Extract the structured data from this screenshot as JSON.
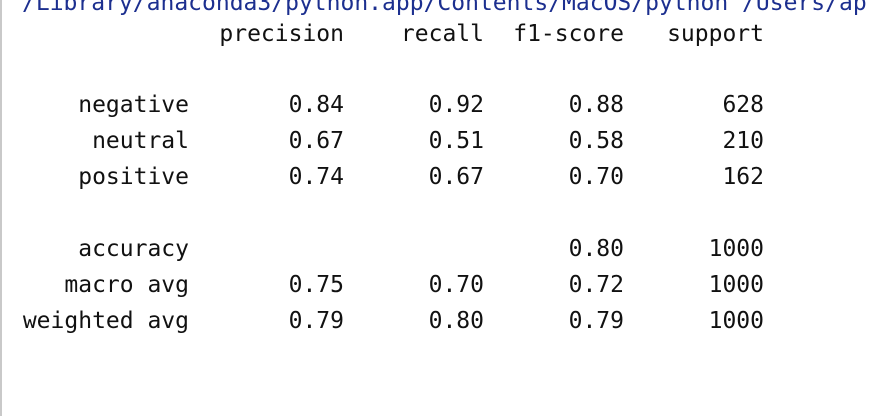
{
  "output": {
    "path_text": "/Library/anaconda3/python.app/Contents/MacOS/python /Users/ap",
    "colors": {
      "text": "#111111",
      "path": "#1c2f8f",
      "border": "#c9c9c9"
    },
    "header": {
      "precision": "precision",
      "recall": "recall",
      "f1": "f1-score",
      "support": "support"
    },
    "rows": [
      {
        "label": "negative",
        "precision": "0.84",
        "recall": "0.92",
        "f1": "0.88",
        "support": "628"
      },
      {
        "label": "neutral",
        "precision": "0.67",
        "recall": "0.51",
        "f1": "0.58",
        "support": "210"
      },
      {
        "label": "positive",
        "precision": "0.74",
        "recall": "0.67",
        "f1": "0.70",
        "support": "162"
      },
      {
        "label": "accuracy",
        "precision": "",
        "recall": "",
        "f1": "0.80",
        "support": "1000"
      },
      {
        "label": "macro avg",
        "precision": "0.75",
        "recall": "0.70",
        "f1": "0.72",
        "support": "1000"
      },
      {
        "label": "weighted avg",
        "precision": "0.79",
        "recall": "0.80",
        "f1": "0.79",
        "support": "1000"
      }
    ]
  }
}
